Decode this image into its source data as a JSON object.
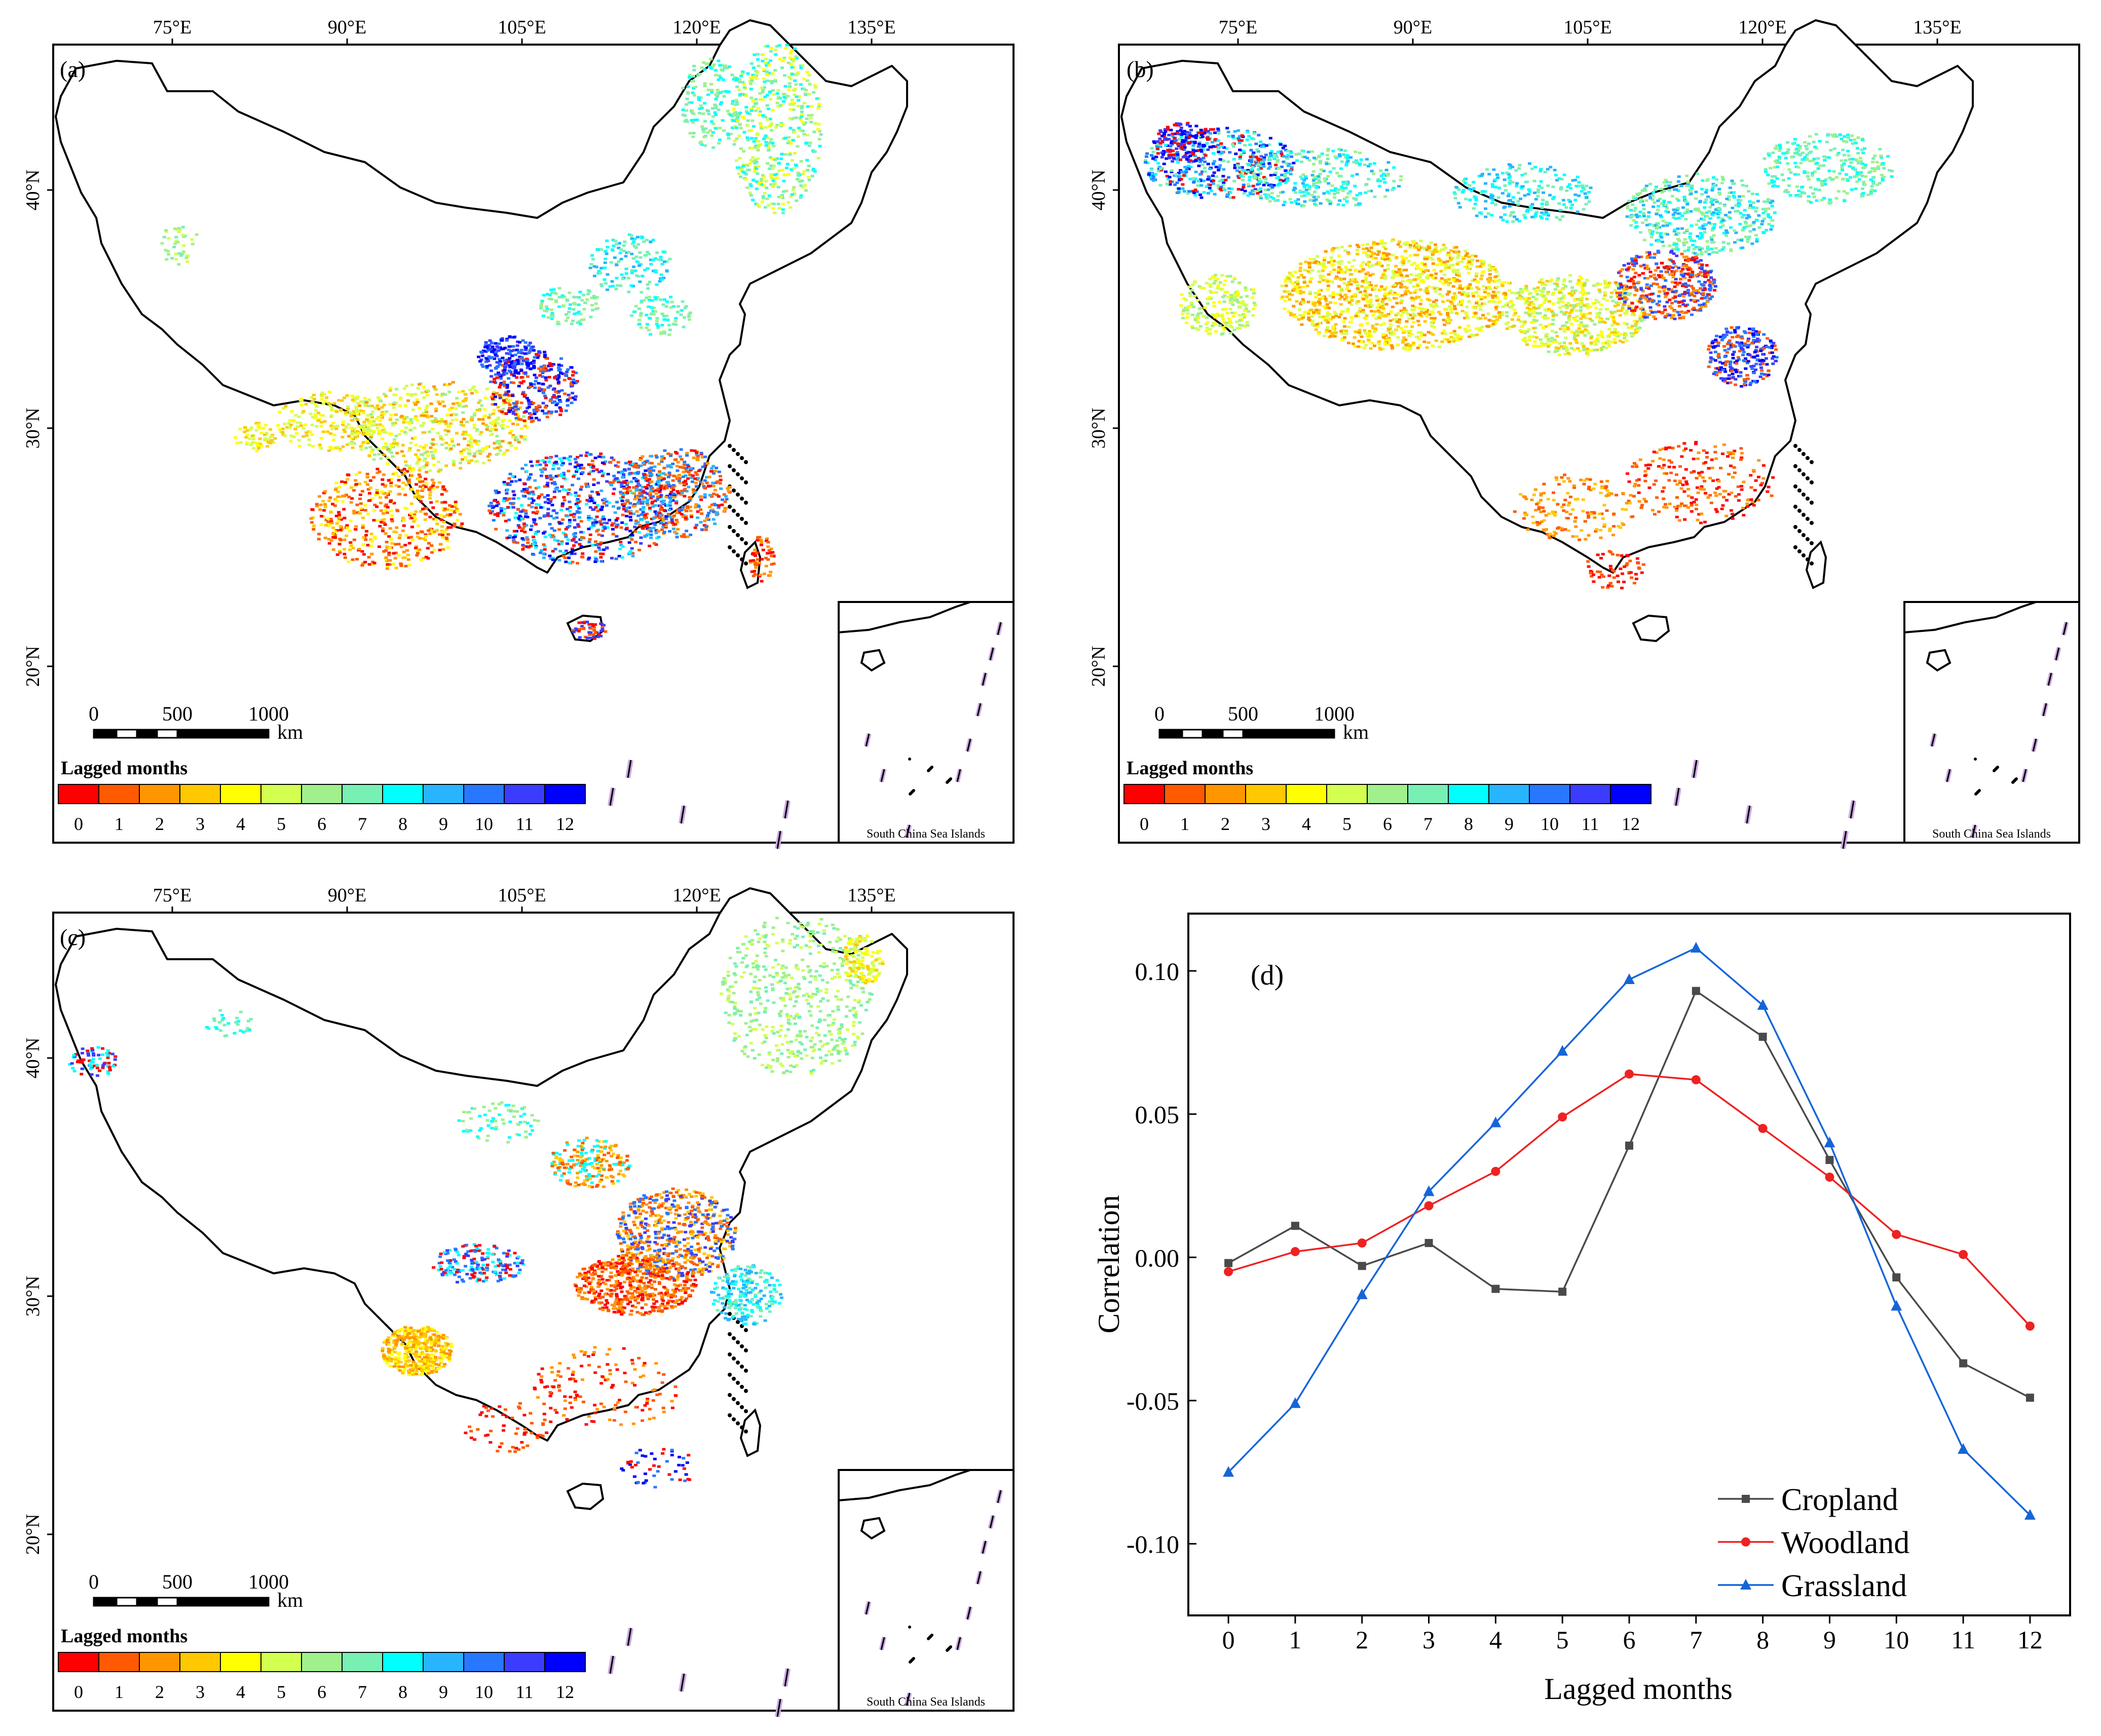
{
  "maps": [
    {
      "id": "a",
      "label": "(a)",
      "lon_ticks": [
        "75°E",
        "90°E",
        "105°E",
        "120°E",
        "135°E"
      ],
      "lat_ticks": [
        "40°N",
        "30°N",
        "20°N"
      ],
      "scale": {
        "labels": [
          "0",
          "500",
          "1000"
        ],
        "unit": "km"
      },
      "legend_title": "Lagged months",
      "inset_label": "South China Sea Islands",
      "pattern": "a"
    },
    {
      "id": "b",
      "label": "(b)",
      "lon_ticks": [
        "75°E",
        "90°E",
        "105°E",
        "120°E",
        "135°E"
      ],
      "lat_ticks": [
        "40°N",
        "30°N",
        "20°N"
      ],
      "scale": {
        "labels": [
          "0",
          "500",
          "1000"
        ],
        "unit": "km"
      },
      "legend_title": "Lagged months",
      "inset_label": "South China Sea Islands",
      "pattern": "b"
    },
    {
      "id": "c",
      "label": "(c)",
      "lon_ticks": [
        "75°E",
        "90°E",
        "105°E",
        "120°E",
        "135°E"
      ],
      "lat_ticks": [
        "40°N",
        "30°N",
        "20°N"
      ],
      "scale": {
        "labels": [
          "0",
          "500",
          "1000"
        ],
        "unit": "km"
      },
      "legend_title": "Lagged months",
      "inset_label": "South China Sea Islands",
      "pattern": "c"
    }
  ],
  "legend_colors": [
    {
      "month": "0",
      "color": "#ff0000"
    },
    {
      "month": "1",
      "color": "#ff5a00"
    },
    {
      "month": "2",
      "color": "#ff9600"
    },
    {
      "month": "3",
      "color": "#ffc800"
    },
    {
      "month": "4",
      "color": "#ffff00"
    },
    {
      "month": "5",
      "color": "#d2ff50"
    },
    {
      "month": "6",
      "color": "#a0f08c"
    },
    {
      "month": "7",
      "color": "#78f0b4"
    },
    {
      "month": "8",
      "color": "#00ffff"
    },
    {
      "month": "9",
      "color": "#28b4ff"
    },
    {
      "month": "10",
      "color": "#2878ff"
    },
    {
      "month": "11",
      "color": "#3c3cff"
    },
    {
      "month": "12",
      "color": "#0000ff"
    }
  ],
  "chart_data": {
    "type": "line",
    "panel_label": "(d)",
    "x": [
      0,
      1,
      2,
      3,
      4,
      5,
      6,
      7,
      8,
      9,
      10,
      11,
      12
    ],
    "xlabel": "Lagged months",
    "ylabel": "Correlation",
    "xlim": [
      -0.6,
      12.6
    ],
    "ylim": [
      -0.125,
      0.12
    ],
    "y_ticks": [
      0.1,
      0.05,
      0.0,
      -0.05,
      -0.1
    ],
    "y_tick_labels": [
      "0.10",
      "0.05",
      "0.00",
      "-0.05",
      "-0.10"
    ],
    "x_tick_labels": [
      "0",
      "1",
      "2",
      "3",
      "4",
      "5",
      "6",
      "7",
      "8",
      "9",
      "10",
      "11",
      "12"
    ],
    "legend_position": "bottom-right",
    "series": [
      {
        "name": "Cropland",
        "color": "#4a4a4a",
        "marker": "square",
        "values": [
          -0.002,
          0.011,
          -0.003,
          0.005,
          -0.011,
          -0.012,
          0.039,
          0.093,
          0.077,
          0.034,
          -0.007,
          -0.037,
          -0.049
        ]
      },
      {
        "name": "Woodland",
        "color": "#ee2222",
        "marker": "circle",
        "values": [
          -0.005,
          0.002,
          0.005,
          0.018,
          0.03,
          0.049,
          0.064,
          0.062,
          0.045,
          0.028,
          0.008,
          0.001,
          -0.024
        ]
      },
      {
        "name": "Grassland",
        "color": "#1565d8",
        "marker": "triangle",
        "values": [
          -0.075,
          -0.051,
          -0.013,
          0.023,
          0.047,
          0.072,
          0.097,
          0.108,
          0.088,
          0.04,
          -0.017,
          -0.067,
          -0.09
        ]
      }
    ]
  }
}
